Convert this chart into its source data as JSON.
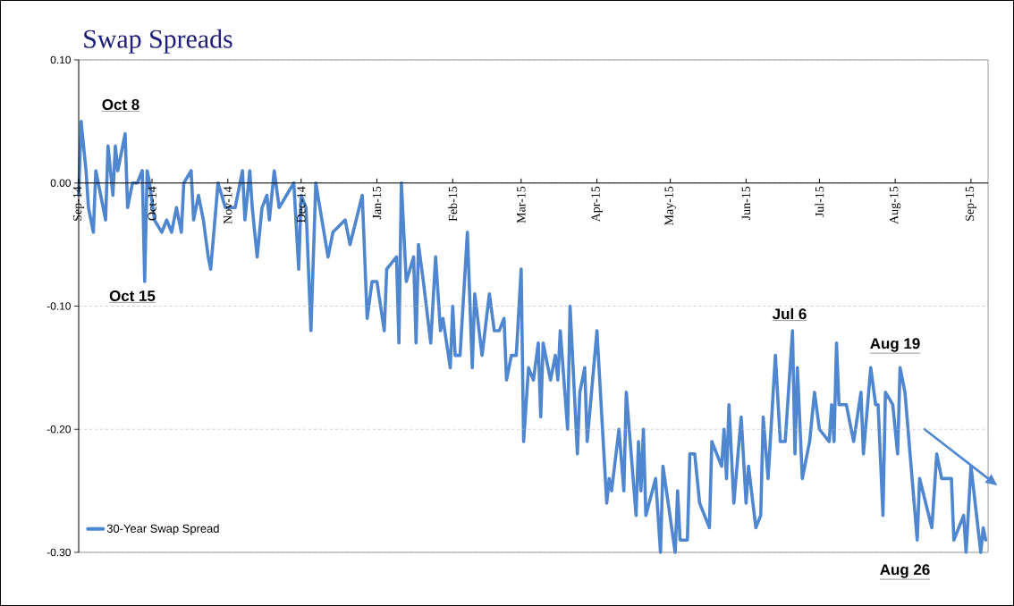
{
  "chart_data": {
    "type": "line",
    "title": "Swap Spreads",
    "xlim": [
      "2014-09-01",
      "2015-09-08"
    ],
    "ylim": [
      -0.3,
      0.1
    ],
    "xticks": [
      {
        "value": "2014-09-01",
        "label": "Sep-14"
      },
      {
        "value": "2014-10-01",
        "label": "Oct-14"
      },
      {
        "value": "2014-11-01",
        "label": "Nov-14"
      },
      {
        "value": "2014-12-01",
        "label": "Dec-14"
      },
      {
        "value": "2015-01-01",
        "label": "Jan-15"
      },
      {
        "value": "2015-02-01",
        "label": "Feb-15"
      },
      {
        "value": "2015-03-01",
        "label": "Mar-15"
      },
      {
        "value": "2015-04-01",
        "label": "Apr-15"
      },
      {
        "value": "2015-05-01",
        "label": "May-15"
      },
      {
        "value": "2015-06-01",
        "label": "Jun-15"
      },
      {
        "value": "2015-07-01",
        "label": "Jul-15"
      },
      {
        "value": "2015-08-01",
        "label": "Aug-15"
      },
      {
        "value": "2015-09-01",
        "label": "Sep-15"
      }
    ],
    "yticks": [
      {
        "value": 0.1,
        "label": "0.10"
      },
      {
        "value": 0.0,
        "label": "0.00"
      },
      {
        "value": -0.1,
        "label": "-0.10"
      },
      {
        "value": -0.2,
        "label": "-0.20"
      },
      {
        "value": -0.3,
        "label": "-0.30"
      }
    ],
    "grid": "y",
    "legend": "bottom left",
    "line_style": "solid",
    "annotations": [
      "Oct 8",
      "Oct 15",
      "Jul 6",
      "Aug 19",
      "Aug 26"
    ],
    "series": [
      {
        "name": "30-Year Swap Spread",
        "color": "#4f86d0",
        "x": [
          "2014-09-01",
          "2014-09-02",
          "2014-09-04",
          "2014-09-05",
          "2014-09-07",
          "2014-09-08",
          "2014-09-10",
          "2014-09-12",
          "2014-09-13",
          "2014-09-15",
          "2014-09-16",
          "2014-09-17",
          "2014-09-20",
          "2014-09-21",
          "2014-09-23",
          "2014-09-25",
          "2014-09-27",
          "2014-09-28",
          "2014-09-29",
          "2014-09-30",
          "2014-10-02",
          "2014-10-05",
          "2014-10-07",
          "2014-10-09",
          "2014-10-11",
          "2014-10-13",
          "2014-10-14",
          "2014-10-17",
          "2014-10-18",
          "2014-10-20",
          "2014-10-22",
          "2014-10-24",
          "2014-10-25",
          "2014-10-28",
          "2014-10-31",
          "2014-11-04",
          "2014-11-07",
          "2014-11-08",
          "2014-11-10",
          "2014-11-11",
          "2014-11-13",
          "2014-11-15",
          "2014-11-17",
          "2014-11-18",
          "2014-11-20",
          "2014-11-22",
          "2014-11-25",
          "2014-11-28",
          "2014-11-30",
          "2014-12-01",
          "2014-12-03",
          "2014-12-05",
          "2014-12-07",
          "2014-12-12",
          "2014-12-14",
          "2014-12-19",
          "2014-12-21",
          "2014-12-26",
          "2014-12-28",
          "2014-12-30",
          "2015-01-01",
          "2015-01-04",
          "2015-01-05",
          "2015-01-09",
          "2015-01-10",
          "2015-01-11",
          "2015-01-13",
          "2015-01-16",
          "2015-01-17",
          "2015-01-18",
          "2015-01-20",
          "2015-01-23",
          "2015-01-25",
          "2015-01-27",
          "2015-01-28",
          "2015-01-31",
          "2015-02-01",
          "2015-02-02",
          "2015-02-04",
          "2015-02-07",
          "2015-02-09",
          "2015-02-10",
          "2015-02-13",
          "2015-02-16",
          "2015-02-18",
          "2015-02-20",
          "2015-02-22",
          "2015-02-23",
          "2015-02-25",
          "2015-02-27",
          "2015-03-01",
          "2015-03-02",
          "2015-03-04",
          "2015-03-06",
          "2015-03-08",
          "2015-03-09",
          "2015-03-10",
          "2015-03-13",
          "2015-03-15",
          "2015-03-16",
          "2015-03-17",
          "2015-03-20",
          "2015-03-21",
          "2015-03-24",
          "2015-03-25",
          "2015-03-27",
          "2015-03-28",
          "2015-04-01",
          "2015-04-05",
          "2015-04-06",
          "2015-04-07",
          "2015-04-10",
          "2015-04-12",
          "2015-04-13",
          "2015-04-17",
          "2015-04-18",
          "2015-04-19",
          "2015-04-20",
          "2015-04-21",
          "2015-04-25",
          "2015-04-27",
          "2015-04-28",
          "2015-05-03",
          "2015-05-04",
          "2015-05-05",
          "2015-05-08",
          "2015-05-09",
          "2015-05-11",
          "2015-05-13",
          "2015-05-17",
          "2015-05-18",
          "2015-05-22",
          "2015-05-23",
          "2015-05-24",
          "2015-05-25",
          "2015-05-27",
          "2015-05-30",
          "2015-06-01",
          "2015-06-02",
          "2015-06-05",
          "2015-06-07",
          "2015-06-08",
          "2015-06-10",
          "2015-06-13",
          "2015-06-15",
          "2015-06-17",
          "2015-06-20",
          "2015-06-21",
          "2015-06-22",
          "2015-06-24",
          "2015-06-27",
          "2015-06-29",
          "2015-07-01",
          "2015-07-05",
          "2015-07-06",
          "2015-07-07",
          "2015-07-08",
          "2015-07-09",
          "2015-07-12",
          "2015-07-13",
          "2015-07-15",
          "2015-07-18",
          "2015-07-19",
          "2015-07-22",
          "2015-07-24",
          "2015-07-25",
          "2015-07-27",
          "2015-07-28",
          "2015-07-31",
          "2015-08-02",
          "2015-08-03",
          "2015-08-05",
          "2015-08-10",
          "2015-08-11",
          "2015-08-16",
          "2015-08-18",
          "2015-08-20",
          "2015-08-24",
          "2015-08-25",
          "2015-08-29",
          "2015-08-30",
          "2015-09-01",
          "2015-09-05",
          "2015-09-06",
          "2015-09-07"
        ],
        "values": [
          -0.01,
          0.05,
          0.01,
          -0.02,
          -0.04,
          0.01,
          -0.01,
          -0.03,
          0.03,
          -0.01,
          0.03,
          0.01,
          0.04,
          -0.02,
          0,
          0,
          0.01,
          -0.08,
          0.01,
          0,
          -0.03,
          -0.04,
          -0.03,
          -0.04,
          -0.02,
          -0.04,
          0,
          0.01,
          -0.03,
          -0.01,
          -0.03,
          -0.06,
          -0.07,
          0,
          -0.02,
          -0.02,
          0.01,
          -0.03,
          0.01,
          -0.02,
          -0.06,
          -0.02,
          -0.01,
          -0.03,
          0.01,
          -0.02,
          -0.01,
          0,
          -0.07,
          -0.01,
          -0.02,
          -0.12,
          0,
          -0.06,
          -0.04,
          -0.03,
          -0.05,
          -0.01,
          -0.11,
          -0.08,
          -0.08,
          -0.12,
          -0.07,
          -0.06,
          -0.13,
          0,
          -0.08,
          -0.06,
          -0.13,
          -0.05,
          -0.08,
          -0.13,
          -0.06,
          -0.12,
          -0.11,
          -0.15,
          -0.1,
          -0.14,
          -0.14,
          -0.04,
          -0.15,
          -0.09,
          -0.14,
          -0.09,
          -0.12,
          -0.12,
          -0.11,
          -0.16,
          -0.14,
          -0.14,
          -0.07,
          -0.21,
          -0.15,
          -0.16,
          -0.13,
          -0.19,
          -0.13,
          -0.16,
          -0.14,
          -0.16,
          -0.12,
          -0.2,
          -0.1,
          -0.22,
          -0.17,
          -0.15,
          -0.21,
          -0.12,
          -0.26,
          -0.24,
          -0.25,
          -0.2,
          -0.25,
          -0.17,
          -0.27,
          -0.21,
          -0.25,
          -0.2,
          -0.27,
          -0.24,
          -0.3,
          -0.23,
          -0.3,
          -0.25,
          -0.29,
          -0.29,
          -0.22,
          -0.22,
          -0.26,
          -0.28,
          -0.21,
          -0.23,
          -0.2,
          -0.24,
          -0.18,
          -0.26,
          -0.19,
          -0.26,
          -0.23,
          -0.28,
          -0.27,
          -0.19,
          -0.24,
          -0.14,
          -0.21,
          -0.21,
          -0.12,
          -0.22,
          -0.15,
          -0.24,
          -0.21,
          -0.17,
          -0.2,
          -0.21,
          -0.18,
          -0.21,
          -0.13,
          -0.18,
          -0.18,
          -0.19,
          -0.21,
          -0.17,
          -0.22,
          -0.15,
          -0.18,
          -0.18,
          -0.27,
          -0.17,
          -0.18,
          -0.22,
          -0.15,
          -0.17,
          -0.29,
          -0.24,
          -0.28,
          -0.22,
          -0.24,
          -0.24,
          -0.29,
          -0.27,
          -0.3,
          -0.23,
          -0.3,
          -0.28,
          -0.29
        ]
      },
      {
        "type": "line",
        "color": "#4f86d0",
        "x": [
          "2015-08-13",
          "2015-09-08"
        ],
        "values": [
          -0.2,
          -0.24
        ]
      }
    ]
  }
}
